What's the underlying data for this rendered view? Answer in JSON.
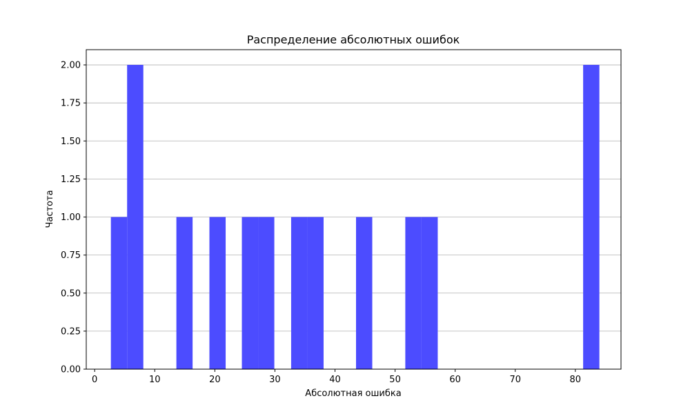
{
  "chart_data": {
    "type": "bar",
    "title": "Распределение абсолютных ошибок",
    "xlabel": "Абсолютная ошибка",
    "ylabel": "Частота",
    "xlim": [
      -1.4,
      87.6
    ],
    "ylim": [
      0,
      2.1
    ],
    "x_ticks": [
      0,
      10,
      20,
      30,
      40,
      50,
      60,
      70,
      80
    ],
    "y_ticks": [
      0.0,
      0.25,
      0.5,
      0.75,
      1.0,
      1.25,
      1.5,
      1.75,
      2.0
    ],
    "x_tick_labels": [
      "0",
      "10",
      "20",
      "30",
      "40",
      "50",
      "60",
      "70",
      "80"
    ],
    "y_tick_labels": [
      "0.00",
      "0.25",
      "0.50",
      "0.75",
      "1.00",
      "1.25",
      "1.50",
      "1.75",
      "2.00"
    ],
    "grid": "y",
    "legend": "none",
    "color": "#4c4cff",
    "bins": [
      {
        "start": 2.7,
        "end": 5.4,
        "count": 1
      },
      {
        "start": 5.4,
        "end": 8.1,
        "count": 2
      },
      {
        "start": 13.6,
        "end": 16.3,
        "count": 1
      },
      {
        "start": 19.1,
        "end": 21.8,
        "count": 1
      },
      {
        "start": 24.5,
        "end": 27.2,
        "count": 1
      },
      {
        "start": 27.2,
        "end": 29.9,
        "count": 1
      },
      {
        "start": 32.7,
        "end": 35.4,
        "count": 1
      },
      {
        "start": 35.4,
        "end": 38.1,
        "count": 1
      },
      {
        "start": 43.5,
        "end": 46.2,
        "count": 1
      },
      {
        "start": 51.7,
        "end": 54.4,
        "count": 1
      },
      {
        "start": 54.4,
        "end": 57.1,
        "count": 1
      },
      {
        "start": 81.3,
        "end": 84.0,
        "count": 2
      }
    ]
  }
}
